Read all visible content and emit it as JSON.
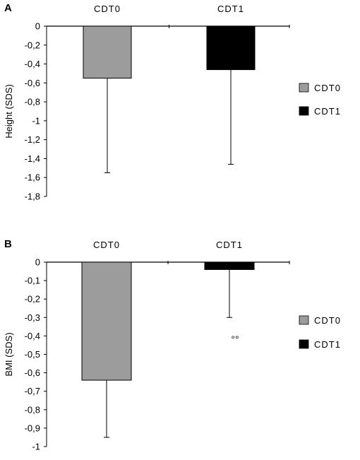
{
  "chart_data": [
    {
      "panel": "A",
      "type": "bar",
      "categories": [
        "CDT0",
        "CDT1"
      ],
      "values": [
        -0.55,
        -0.46
      ],
      "error_bars": [
        1.0,
        1.0
      ],
      "colors": [
        "#9c9c9c",
        "#000000"
      ],
      "ylabel": "Height (SDS)",
      "ylim": [
        -1.8,
        0
      ],
      "yticks": [
        "0",
        "-0,2",
        "-0,4",
        "-0,6",
        "-0,8",
        "-1",
        "-1,2",
        "-1,4",
        "-1,6",
        "-1,8"
      ],
      "legend": [
        "CDT0",
        "CDT1"
      ],
      "legend_position": "right",
      "annotation": ""
    },
    {
      "panel": "B",
      "type": "bar",
      "categories": [
        "CDT0",
        "CDT1"
      ],
      "values": [
        -0.64,
        -0.04
      ],
      "error_bars": [
        0.31,
        0.26
      ],
      "colors": [
        "#9c9c9c",
        "#000000"
      ],
      "ylabel": "BMI (SDS)",
      "ylim": [
        -1,
        0
      ],
      "yticks": [
        "0",
        "-0,1",
        "-0,2",
        "-0,3",
        "-0,4",
        "-0,5",
        "-0,6",
        "-0,7",
        "-0,8",
        "-0,9",
        "-1"
      ],
      "legend": [
        "CDT0",
        "CDT1"
      ],
      "legend_position": "right",
      "annotation": "°°"
    }
  ]
}
